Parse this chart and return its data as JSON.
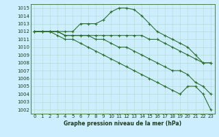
{
  "xlabel": "Graphe pression niveau de la mer (hPa)",
  "bg_color": "#cceeff",
  "grid_color": "#b8ddd0",
  "line_color": "#2d6e2d",
  "xlim": [
    -0.5,
    23.5
  ],
  "ylim": [
    1001.5,
    1015.5
  ],
  "yticks": [
    1002,
    1003,
    1004,
    1005,
    1006,
    1007,
    1008,
    1009,
    1010,
    1011,
    1012,
    1013,
    1014,
    1015
  ],
  "xticks": [
    0,
    1,
    2,
    3,
    4,
    5,
    6,
    7,
    8,
    9,
    10,
    11,
    12,
    13,
    14,
    15,
    16,
    17,
    18,
    19,
    20,
    21,
    22,
    23
  ],
  "series": [
    [
      1012,
      1012,
      1012,
      1012,
      1012,
      1012,
      1013,
      1013,
      1013,
      1013.5,
      1014.5,
      1015,
      1015,
      1014.8,
      1014,
      1013,
      1012,
      1011.5,
      1011,
      1010.5,
      1010,
      1009,
      1008,
      1008
    ],
    [
      1012,
      1012,
      1012,
      1012,
      1011.5,
      1011.5,
      1011.5,
      1011.5,
      1011.5,
      1011.5,
      1011.5,
      1011.5,
      1011.5,
      1011.5,
      1011.5,
      1011,
      1011,
      1010.5,
      1010,
      1009.5,
      1009,
      1008.5,
      1008,
      1008
    ],
    [
      1012,
      1012,
      1012,
      1012,
      1011.5,
      1011.5,
      1011.5,
      1011.5,
      1011,
      1011,
      1010.5,
      1010,
      1010,
      1009.5,
      1009,
      1008.5,
      1008,
      1007.5,
      1007,
      1007,
      1006.5,
      1005.5,
      1005,
      1004
    ],
    [
      1012,
      1012,
      1012,
      1011.5,
      1011,
      1011,
      1010.5,
      1010,
      1009.5,
      1009,
      1008.5,
      1008,
      1007.5,
      1007,
      1006.5,
      1006,
      1005.5,
      1005,
      1004.5,
      1004,
      1005,
      1005,
      1004,
      1002
    ]
  ]
}
